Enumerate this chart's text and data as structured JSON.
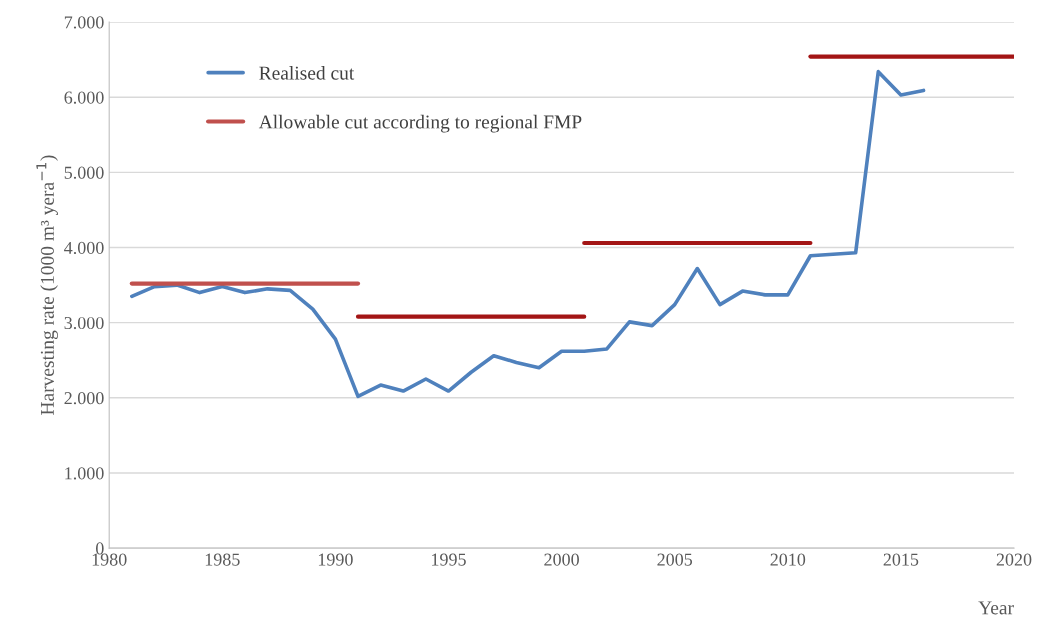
{
  "chart_data": {
    "type": "line",
    "xlabel": "Year",
    "ylabel": "Harvesting rate (1000 m³ yera$^{−1}$)",
    "xlim": [
      1980,
      2020
    ],
    "xticks": [
      1980,
      1985,
      1990,
      1995,
      2000,
      2005,
      2010,
      2015,
      2020
    ],
    "ylim": [
      0,
      7000
    ],
    "yticks": [
      0,
      {
        "value": 1000,
        "label": "1.000"
      },
      {
        "value": 2000,
        "label": "2.000"
      },
      {
        "value": 3000,
        "label": "3.000"
      },
      {
        "value": 4000,
        "label": "4.000"
      },
      {
        "value": 5000,
        "label": "5.000"
      },
      {
        "value": 6000,
        "label": "6.000"
      },
      {
        "value": 7000,
        "label": "7.000"
      }
    ],
    "grid": "y",
    "legend": "top left",
    "marker": "none",
    "line_style": "solid",
    "series": [
      {
        "name": "Realised cut",
        "color": "#4f81bd",
        "x": [
          1981,
          1982,
          1983,
          1984,
          1985,
          1986,
          1987,
          1988,
          1989,
          1990,
          1991,
          1992,
          1993,
          1994,
          1995,
          1996,
          1997,
          1998,
          1999,
          2000,
          2001,
          2002,
          2003,
          2004,
          2005,
          2006,
          2007,
          2008,
          2009,
          2010,
          2011,
          2012,
          2013,
          2014,
          2015,
          2016
        ],
        "values": [
          3350,
          3480,
          3500,
          3400,
          3480,
          3400,
          3450,
          3430,
          3180,
          2780,
          2020,
          2170,
          2090,
          2250,
          2090,
          2340,
          2560,
          2470,
          2400,
          2620,
          2620,
          2650,
          3010,
          2960,
          3240,
          3720,
          3240,
          3420,
          3370,
          3370,
          3890,
          3910,
          3930,
          6340,
          6030,
          6090
        ]
      },
      {
        "name": "Allowable cut according to regional FMP",
        "color": "#c0504d",
        "x": [
          1981,
          1991
        ],
        "values": [
          3520,
          3520
        ]
      },
      {
        "color": "#a31515",
        "x": [
          1991,
          2001
        ],
        "values": [
          3080,
          3080
        ]
      },
      {
        "color": "#a31515",
        "x": [
          2001,
          2011
        ],
        "values": [
          4060,
          4060
        ]
      },
      {
        "color": "#a31515",
        "x": [
          2011,
          2020
        ],
        "values": [
          6540,
          6540
        ]
      }
    ]
  }
}
